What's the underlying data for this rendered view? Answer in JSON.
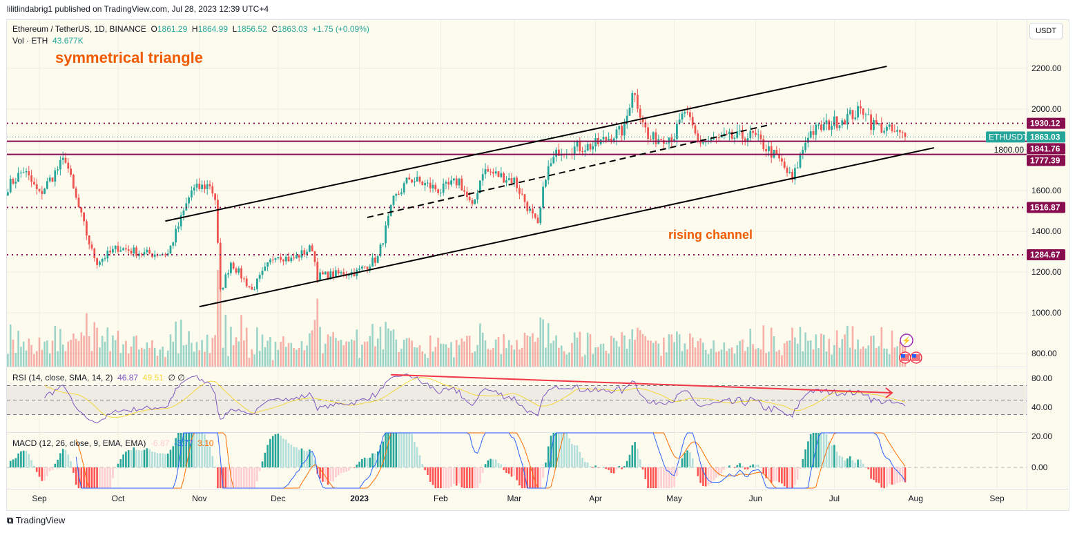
{
  "header": {
    "published": "lilitlindabrig1 published on TradingView.com, Jul 28, 2023 12:39 UTC+4"
  },
  "legend": {
    "symbol": "Ethereum / TetherUS, 1D, BINANCE",
    "open": "1861.29",
    "high": "1864.99",
    "low": "1856.52",
    "close": "1863.03",
    "change": "+1.75 (+0.09%)",
    "vol_label": "Vol · ETH",
    "vol_value": "43.677K",
    "rsi_label": "RSI (14, close, SMA, 14, 2)",
    "rsi_value": "46.87",
    "rsi_sma": "49.51",
    "rsi_extra": "∅ ∅",
    "macd_label": "MACD (12, 26, close, 9, EMA, EMA)",
    "macd_hist": "-6.87",
    "macd_line": "-3.77",
    "macd_signal": "3.10"
  },
  "currency_button": "USDT",
  "annotations": {
    "triangle": "symmetrical triangle",
    "channel": "rising channel"
  },
  "footer": {
    "brand": "TradingView"
  },
  "colors": {
    "up": "#26a69a",
    "down": "#ef5350",
    "level": "#880e4f",
    "annotation": "#f05a00",
    "rsi": "#7e57c2",
    "rsi_sma": "#f4d83a",
    "macd": "#2962ff",
    "signal": "#ff6d00"
  },
  "chart_data": {
    "type": "candlestick",
    "symbol_tag": "ETHUSDT",
    "last_price": "1863.03",
    "ylim": [
      700,
      2350
    ],
    "price_ticks": [
      "2200.00",
      "2000.00",
      "1800.00",
      "1600.00",
      "1400.00",
      "1200.00",
      "1000.00",
      "800.00"
    ],
    "price_tick_values": [
      2200,
      2000,
      1800,
      1600,
      1400,
      1200,
      1000,
      800
    ],
    "time_ticks": [
      {
        "label": "Sep",
        "date": "2022-09-01"
      },
      {
        "label": "Oct",
        "date": "2022-10-01"
      },
      {
        "label": "Nov",
        "date": "2022-11-01"
      },
      {
        "label": "Dec",
        "date": "2022-12-01"
      },
      {
        "label": "2023",
        "date": "2023-01-01"
      },
      {
        "label": "Feb",
        "date": "2023-02-01"
      },
      {
        "label": "Mar",
        "date": "2023-03-01"
      },
      {
        "label": "Apr",
        "date": "2023-04-01"
      },
      {
        "label": "May",
        "date": "2023-05-01"
      },
      {
        "label": "Jun",
        "date": "2023-06-01"
      },
      {
        "label": "Jul",
        "date": "2023-07-01"
      },
      {
        "label": "Aug",
        "date": "2023-08-01"
      },
      {
        "label": "Sep",
        "date": "2023-09-01"
      }
    ],
    "close_waypoints": [
      [
        "2022-08-20",
        1620
      ],
      [
        "2022-08-26",
        1700
      ],
      [
        "2022-09-01",
        1580
      ],
      [
        "2022-09-11",
        1760
      ],
      [
        "2022-09-14",
        1600
      ],
      [
        "2022-09-21",
        1300
      ],
      [
        "2022-09-23",
        1250
      ],
      [
        "2022-10-01",
        1320
      ],
      [
        "2022-10-11",
        1290
      ],
      [
        "2022-10-20",
        1290
      ],
      [
        "2022-10-25",
        1460
      ],
      [
        "2022-10-29",
        1600
      ],
      [
        "2022-11-05",
        1630
      ],
      [
        "2022-11-07",
        1560
      ],
      [
        "2022-11-09",
        1100
      ],
      [
        "2022-11-13",
        1250
      ],
      [
        "2022-11-21",
        1110
      ],
      [
        "2022-11-30",
        1290
      ],
      [
        "2022-12-06",
        1260
      ],
      [
        "2022-12-14",
        1320
      ],
      [
        "2022-12-16",
        1180
      ],
      [
        "2022-12-31",
        1200
      ],
      [
        "2023-01-08",
        1270
      ],
      [
        "2023-01-14",
        1550
      ],
      [
        "2023-01-20",
        1660
      ],
      [
        "2023-02-01",
        1600
      ],
      [
        "2023-02-08",
        1650
      ],
      [
        "2023-02-13",
        1510
      ],
      [
        "2023-02-17",
        1700
      ],
      [
        "2023-03-01",
        1650
      ],
      [
        "2023-03-10",
        1420
      ],
      [
        "2023-03-13",
        1680
      ],
      [
        "2023-03-18",
        1800
      ],
      [
        "2023-03-31",
        1820
      ],
      [
        "2023-04-12",
        1900
      ],
      [
        "2023-04-15",
        2100
      ],
      [
        "2023-04-19",
        1950
      ],
      [
        "2023-04-21",
        1850
      ],
      [
        "2023-05-01",
        1870
      ],
      [
        "2023-05-05",
        1990
      ],
      [
        "2023-05-10",
        1840
      ],
      [
        "2023-05-31",
        1870
      ],
      [
        "2023-06-05",
        1810
      ],
      [
        "2023-06-10",
        1750
      ],
      [
        "2023-06-15",
        1650
      ],
      [
        "2023-06-21",
        1880
      ],
      [
        "2023-06-30",
        1930
      ],
      [
        "2023-07-13",
        2000
      ],
      [
        "2023-07-15",
        1930
      ],
      [
        "2023-07-28",
        1863
      ]
    ],
    "horizontal_levels": [
      {
        "price": 1930.12,
        "label": "1930.12",
        "style": "dotted"
      },
      {
        "price": 1841.76,
        "label": "1841.76",
        "style": "solid"
      },
      {
        "price": 1777.39,
        "label": "1777.39",
        "style": "solid"
      },
      {
        "price": 1516.87,
        "label": "1516.87",
        "style": "dotted"
      },
      {
        "price": 1284.67,
        "label": "1284.67",
        "style": "dotted"
      }
    ],
    "trend_lines": [
      {
        "name": "channel-upper",
        "from": [
          "2022-10-19",
          1450
        ],
        "to": [
          "2023-07-21",
          2210
        ],
        "style": "solid"
      },
      {
        "name": "channel-lower",
        "from": [
          "2022-11-01",
          1030
        ],
        "to": [
          "2023-08-08",
          1810
        ],
        "style": "solid"
      },
      {
        "name": "channel-mid",
        "from": [
          "2023-01-04",
          1468
        ],
        "to": [
          "2023-06-07",
          1925
        ],
        "style": "dashed"
      }
    ],
    "rsi_ticks": [
      "80.00",
      "40.00"
    ],
    "rsi_divergence_arrow": {
      "from": [
        "2023-01-13",
        85
      ],
      "to": [
        "2023-07-23",
        60
      ]
    },
    "macd_ticks": [
      "20.00",
      "0.00"
    ]
  }
}
